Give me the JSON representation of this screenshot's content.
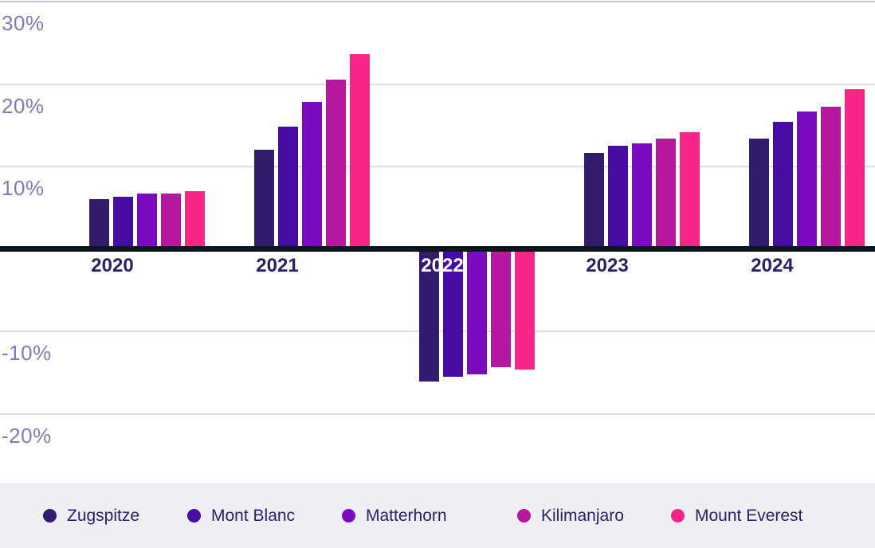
{
  "chart_data": {
    "type": "bar",
    "title": "",
    "xlabel": "",
    "ylabel": "",
    "unit": "%",
    "categories": [
      "2020",
      "2021",
      "2022",
      "2023",
      "2024"
    ],
    "series": [
      {
        "name": "Zugspitze",
        "color": "#331b6d",
        "values": [
          6.0,
          12.0,
          -16.1,
          11.6,
          13.4
        ]
      },
      {
        "name": "Mont Blanc",
        "color": "#470ca3",
        "values": [
          6.3,
          14.8,
          -15.5,
          12.5,
          15.4
        ]
      },
      {
        "name": "Matterhorn",
        "color": "#7a0bc0",
        "values": [
          6.7,
          17.8,
          -15.2,
          12.8,
          16.7
        ]
      },
      {
        "name": "Kilimanjaro",
        "color": "#b5179e",
        "values": [
          6.7,
          20.5,
          -14.3,
          13.4,
          17.2
        ]
      },
      {
        "name": "Mount Everest",
        "color": "#f72585",
        "values": [
          7.0,
          23.6,
          -14.6,
          14.2,
          19.4
        ]
      }
    ],
    "y_ticks": [
      {
        "label": "30%",
        "value": 30
      },
      {
        "label": "20%",
        "value": 20
      },
      {
        "label": "10%",
        "value": 10
      },
      {
        "label": "-10%",
        "value": -10
      },
      {
        "label": "-20%",
        "value": -20
      }
    ],
    "ylim": [
      -25,
      31
    ],
    "grid": true,
    "legend_position": "bottom"
  },
  "style_colors": {
    "gridline": "#dcdfeb",
    "top_gridline": "#c6cbd9",
    "zero_line": "#0d161d",
    "y_label_text": "#817bb2",
    "x_label_text": "#2b2061",
    "x_label_text_on_bars": "#ffffff",
    "legend_background": "#edeff5",
    "legend_text": "#2b2061",
    "background": "#ffffff"
  }
}
